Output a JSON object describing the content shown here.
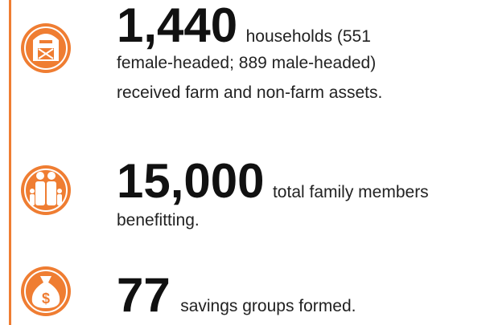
{
  "items": [
    {
      "number": "1,440",
      "lines": [
        "households (551",
        "female-headed; 889 male-headed)",
        "received farm and non-farm assets."
      ]
    },
    {
      "number": "15,000",
      "lines": [
        "total family members",
        "benefitting."
      ]
    },
    {
      "number": "77",
      "lines": [
        "savings groups formed."
      ]
    }
  ]
}
